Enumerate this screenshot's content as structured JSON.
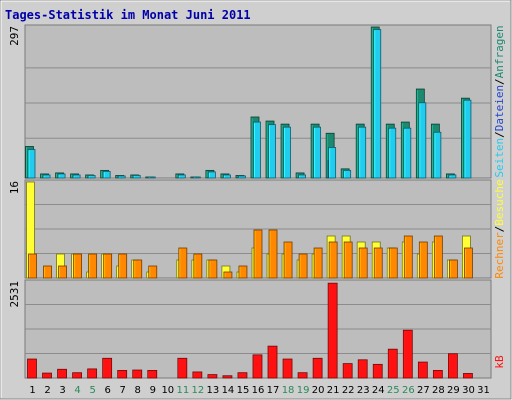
{
  "chart_data": {
    "type": "bar",
    "title": "Tages-Statistik im Monat Juni 2011",
    "x": [
      "1",
      "2",
      "3",
      "4",
      "5",
      "6",
      "7",
      "8",
      "9",
      "10",
      "11",
      "12",
      "13",
      "14",
      "15",
      "16",
      "17",
      "18",
      "19",
      "20",
      "21",
      "22",
      "23",
      "24",
      "25",
      "26",
      "27",
      "28",
      "29",
      "30",
      "31"
    ],
    "weekend_days": [
      "4",
      "5",
      "11",
      "12",
      "18",
      "19",
      "25",
      "26"
    ],
    "panels": [
      {
        "ymax_label": "297",
        "ylim": [
          0,
          297
        ],
        "series": [
          {
            "name": "Anfragen",
            "color": "#1b8a70",
            "values": [
              62,
              8,
              10,
              8,
              6,
              15,
              5,
              6,
              2,
              0,
              8,
              2,
              15,
              8,
              5,
              120,
              112,
              106,
              10,
              106,
              88,
              18,
              106,
              297,
              106,
              110,
              175,
              106,
              8,
              157,
              0
            ]
          },
          {
            "name": "Dateien",
            "color": "#2244cc",
            "values": [
              0,
              0,
              0,
              0,
              0,
              0,
              0,
              0,
              0,
              0,
              0,
              0,
              0,
              0,
              0,
              0,
              0,
              0,
              0,
              0,
              35,
              0,
              0,
              0,
              0,
              0,
              0,
              0,
              0,
              0,
              0
            ]
          },
          {
            "name": "Seiten",
            "color": "#22ccee",
            "values": [
              56,
              6,
              8,
              6,
              5,
              13,
              4,
              5,
              1,
              0,
              6,
              1,
              12,
              6,
              4,
              110,
              105,
              100,
              6,
              100,
              60,
              15,
              100,
              292,
              98,
              98,
              148,
              90,
              6,
              153,
              0
            ]
          }
        ]
      },
      {
        "ymax_label": "16",
        "ylim": [
          0,
          16
        ],
        "series": [
          {
            "name": "Besuche",
            "color": "#ffff33",
            "values": [
              16,
              0,
              4,
              4,
              1,
              4,
              2,
              3,
              1,
              0,
              3,
              3,
              3,
              2,
              1,
              5,
              4,
              4,
              3,
              4,
              7,
              7,
              6,
              6,
              5,
              6,
              4,
              6,
              3,
              7,
              0
            ]
          },
          {
            "name": "Rechner",
            "color": "#ff8800",
            "values": [
              4,
              2,
              2,
              4,
              4,
              4,
              4,
              3,
              2,
              0,
              5,
              4,
              3,
              1,
              2,
              8,
              8,
              6,
              4,
              5,
              6,
              6,
              5,
              5,
              5,
              7,
              6,
              7,
              3,
              5,
              0
            ]
          }
        ]
      },
      {
        "ymax_label": "2531",
        "ylim": [
          0,
          2531
        ],
        "series": [
          {
            "name": "kB",
            "color": "#ff1111",
            "values": [
              500,
              130,
              230,
              140,
              240,
              520,
              200,
              210,
              200,
              0,
              520,
              160,
              90,
              60,
              140,
              610,
              840,
              500,
              140,
              520,
              2500,
              380,
              480,
              360,
              760,
              1260,
              420,
              200,
              640,
              120,
              0
            ]
          }
        ]
      }
    ]
  }
}
